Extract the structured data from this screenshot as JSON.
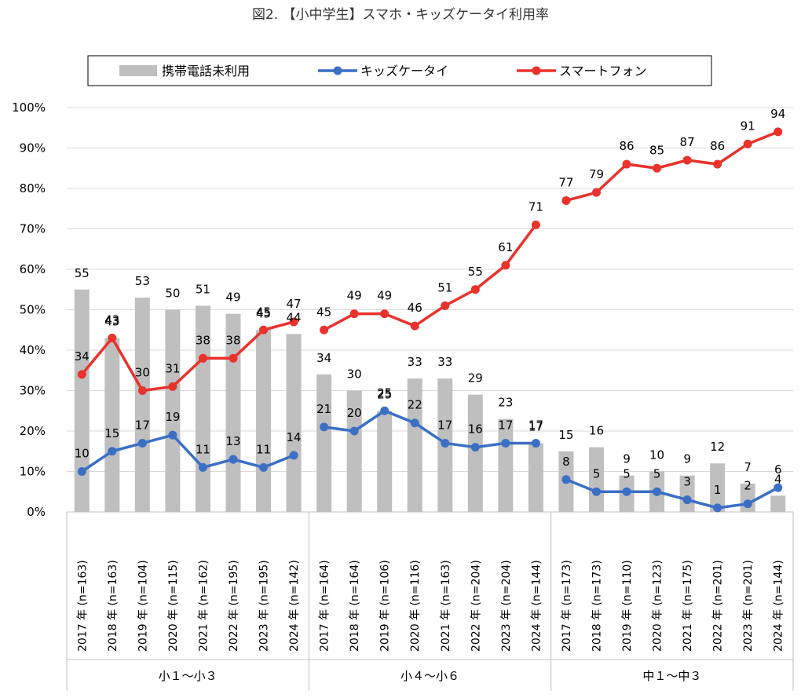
{
  "title": "図2. 【小中学生】スマホ・キッズケータイ利用率",
  "chart_data": {
    "type": "bar",
    "title": "図2. 【小中学生】スマホ・キッズケータイ利用率",
    "y_ticks": [
      "0%",
      "10%",
      "20%",
      "30%",
      "40%",
      "50%",
      "60%",
      "70%",
      "80%",
      "90%",
      "100%"
    ],
    "ylim": [
      0,
      100
    ],
    "grid": true,
    "legend_position": "top",
    "groups": [
      {
        "name": "小１〜小３",
        "start": 0,
        "end": 8
      },
      {
        "name": "小４〜小６",
        "start": 8,
        "end": 16
      },
      {
        "name": "中１〜中３",
        "start": 16,
        "end": 24
      }
    ],
    "categories": [
      "2017 年 (n=163)",
      "2018 年 (n=163)",
      "2019 年 (n=104)",
      "2020 年 (n=115)",
      "2021 年 (n=162)",
      "2022 年 (n=195)",
      "2023 年 (n=195)",
      "2024 年 (n=142)",
      "2017 年 (n=164)",
      "2018 年 (n=164)",
      "2019 年 (n=106)",
      "2020 年 (n=116)",
      "2021 年 (n=163)",
      "2022 年 (n=204)",
      "2023 年 (n=204)",
      "2024 年 (n=144)",
      "2017 年 (n=173)",
      "2018 年 (n=173)",
      "2019 年 (n=110)",
      "2020 年 (n=123)",
      "2021 年 (n=175)",
      "2022 年 (n=201)",
      "2023 年 (n=201)",
      "2024 年 (n=144)"
    ],
    "series": [
      {
        "name": "携帯電話未利用",
        "kind": "bar",
        "color": "#bfbfbf",
        "values": [
          55,
          43,
          53,
          50,
          51,
          49,
          45,
          44,
          34,
          30,
          25,
          33,
          33,
          29,
          23,
          17,
          15,
          16,
          9,
          10,
          9,
          12,
          7,
          4
        ]
      },
      {
        "name": "キッズケータイ",
        "kind": "line",
        "color": "#3a6fc4",
        "values": [
          10,
          15,
          17,
          19,
          11,
          13,
          11,
          14,
          21,
          20,
          25,
          22,
          17,
          16,
          17,
          17,
          8,
          5,
          5,
          5,
          3,
          1,
          2,
          6
        ]
      },
      {
        "name": "スマートフォン",
        "kind": "line",
        "color": "#e8322b",
        "values": [
          34,
          43,
          30,
          31,
          38,
          38,
          45,
          47,
          45,
          49,
          49,
          46,
          51,
          55,
          61,
          71,
          77,
          79,
          86,
          85,
          87,
          86,
          91,
          94
        ]
      }
    ]
  }
}
